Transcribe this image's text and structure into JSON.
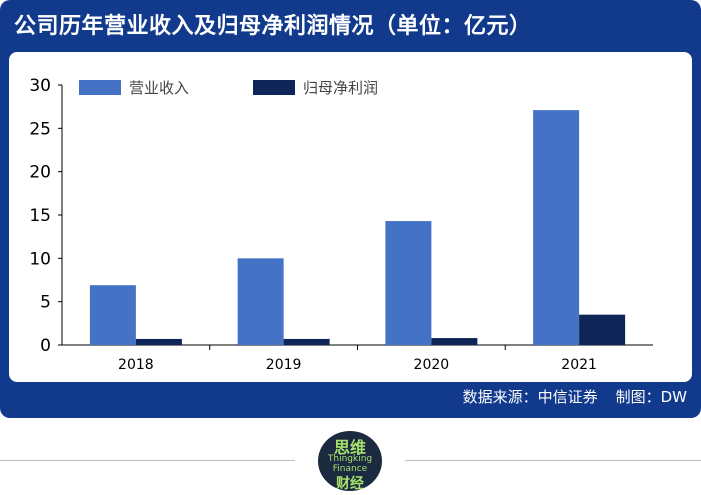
{
  "header": {
    "title": "公司历年营业收入及归母净利润情况（单位：亿元）"
  },
  "footer": {
    "source": "数据来源：中信证券",
    "credit": "制图：DW"
  },
  "logo": {
    "line1": "思维",
    "line2": "Thingking",
    "line3": "Finance",
    "line4": "财经"
  },
  "colors": {
    "frame": "#123a8c",
    "revenue": "#4472c4",
    "net_profit": "#0d2657"
  },
  "chart_data": {
    "type": "bar",
    "title": "公司历年营业收入及归母净利润情况（单位：亿元）",
    "categories": [
      "2018",
      "2019",
      "2020",
      "2021"
    ],
    "series": [
      {
        "name": "营业收入",
        "color": "#4472c4",
        "values": [
          6.9,
          10.0,
          14.3,
          27.1
        ]
      },
      {
        "name": "归母净利润",
        "color": "#0d2657",
        "values": [
          0.7,
          0.7,
          0.8,
          3.5
        ]
      }
    ],
    "ylim": [
      0,
      30
    ],
    "yticks": [
      0,
      5,
      10,
      15,
      20,
      25,
      30
    ],
    "grid": false,
    "legend": "top-left"
  }
}
